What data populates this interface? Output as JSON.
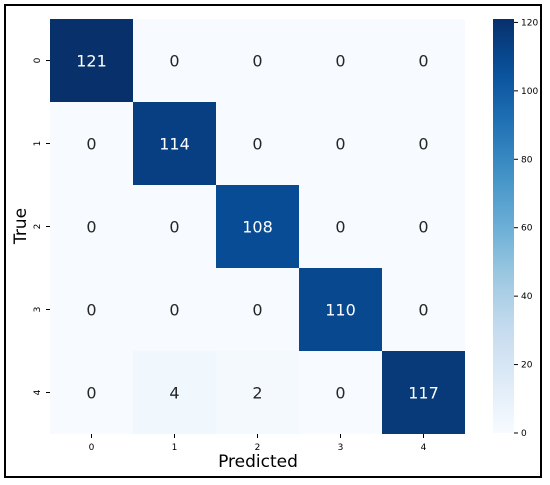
{
  "chart_data": {
    "type": "heatmap",
    "title": "",
    "xlabel": "Predicted",
    "ylabel": "True",
    "x_categories": [
      "0",
      "1",
      "2",
      "3",
      "4"
    ],
    "y_categories": [
      "0",
      "1",
      "2",
      "3",
      "4"
    ],
    "values": [
      [
        121,
        0,
        0,
        0,
        0
      ],
      [
        0,
        114,
        0,
        0,
        0
      ],
      [
        0,
        0,
        108,
        0,
        0
      ],
      [
        0,
        0,
        0,
        110,
        0
      ],
      [
        0,
        4,
        2,
        0,
        117
      ]
    ],
    "colorbar": {
      "min": 0,
      "max": 121,
      "ticks": [
        0,
        20,
        40,
        60,
        80,
        100,
        120
      ],
      "colormap": "Blues"
    },
    "grid": false,
    "annotations": true
  }
}
